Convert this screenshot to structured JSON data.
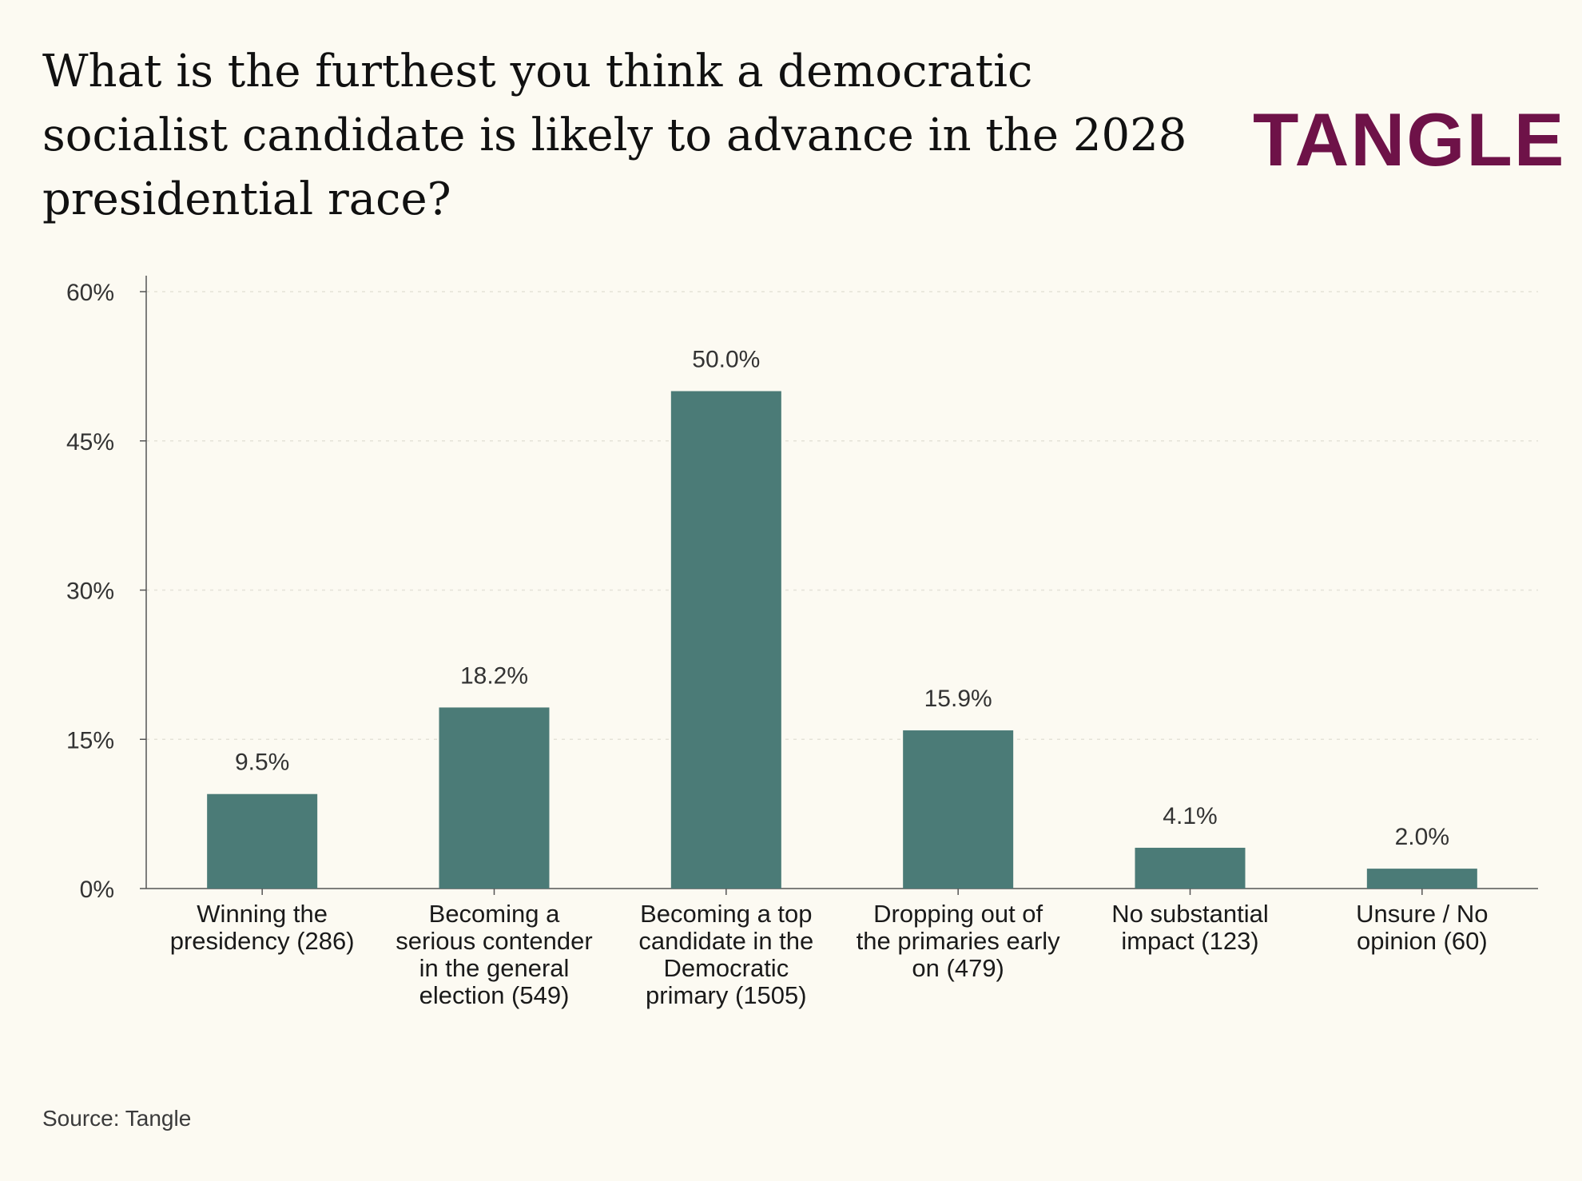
{
  "header": {
    "title": "What is the furthest you think a democratic socialist candidate is likely to advance in the 2028 presidential race?",
    "logo_text": "TANGLE"
  },
  "footer": {
    "source": "Source: Tangle"
  },
  "colors": {
    "background": "#fcfaf2",
    "bar": "#4b7b77",
    "brand": "#6e1248"
  },
  "chart_data": {
    "type": "bar",
    "title": "What is the furthest you think a democratic socialist candidate is likely to advance in the 2028 presidential race?",
    "xlabel": "",
    "ylabel": "",
    "ylim": [
      0,
      60
    ],
    "yticks": [
      0,
      15,
      30,
      45,
      60
    ],
    "ytick_labels": [
      "0%",
      "15%",
      "30%",
      "45%",
      "60%"
    ],
    "grid": "horizontal dotted",
    "categories": [
      [
        "Winning the",
        "presidency (286)"
      ],
      [
        "Becoming a",
        "serious contender",
        "in the general",
        "election (549)"
      ],
      [
        "Becoming a top",
        "candidate in the",
        "Democratic",
        "primary (1505)"
      ],
      [
        "Dropping out of",
        "the primaries early",
        "on (479)"
      ],
      [
        "No substantial",
        "impact (123)"
      ],
      [
        "Unsure / No",
        "opinion (60)"
      ]
    ],
    "values": [
      9.5,
      18.2,
      50.0,
      15.9,
      4.1,
      2.0
    ],
    "value_labels": [
      "9.5%",
      "18.2%",
      "50.0%",
      "15.9%",
      "4.1%",
      "2.0%"
    ]
  }
}
